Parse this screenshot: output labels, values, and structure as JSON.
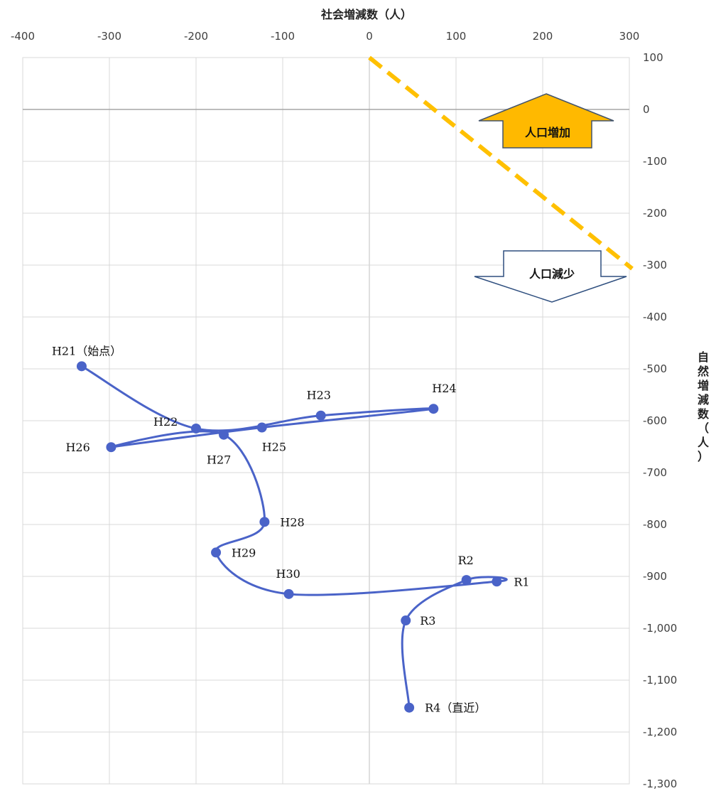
{
  "chart_data": {
    "type": "scatter",
    "xlabel": "社会増減数（人）",
    "ylabel": "自然増減数（人）",
    "xlim": [
      -400,
      300
    ],
    "ylim": [
      -1300,
      100
    ],
    "x_ticks": [
      "-400",
      "-300",
      "-200",
      "-100",
      "0",
      "100",
      "200",
      "300"
    ],
    "y_ticks": [
      "100",
      "0",
      "-100",
      "-200",
      "-300",
      "-400",
      "-500",
      "-600",
      "-700",
      "-800",
      "-900",
      "-1,000",
      "-1,100",
      "-1,200",
      "-1,300"
    ],
    "grid": true,
    "series_color": "#4a63c8",
    "points": [
      {
        "label": "H21（始点）",
        "x": -332,
        "y": -495
      },
      {
        "label": "H22",
        "x": -200,
        "y": -615
      },
      {
        "label": "H23",
        "x": -56,
        "y": -590
      },
      {
        "label": "H24",
        "x": 74,
        "y": -577
      },
      {
        "label": "H25",
        "x": -124,
        "y": -613
      },
      {
        "label": "H26",
        "x": -298,
        "y": -651
      },
      {
        "label": "H27",
        "x": -168,
        "y": -627
      },
      {
        "label": "H28",
        "x": -121,
        "y": -795
      },
      {
        "label": "H29",
        "x": -177,
        "y": -854
      },
      {
        "label": "H30",
        "x": -93,
        "y": -934
      },
      {
        "label": "R1",
        "x": 147,
        "y": -910
      },
      {
        "label": "R2",
        "x": 112,
        "y": -907
      },
      {
        "label": "R3",
        "x": 42,
        "y": -985
      },
      {
        "label": "R4（直近）",
        "x": 46,
        "y": -1153
      }
    ],
    "breakeven_line": {
      "color": "#ffc000",
      "from": [
        0,
        100
      ],
      "to": [
        300,
        -300
      ]
    },
    "annotations": [
      {
        "text": "人口増加",
        "direction": "up",
        "fill": "#ffb900"
      },
      {
        "text": "人口減少",
        "direction": "down",
        "fill": "#ffffff"
      }
    ]
  }
}
